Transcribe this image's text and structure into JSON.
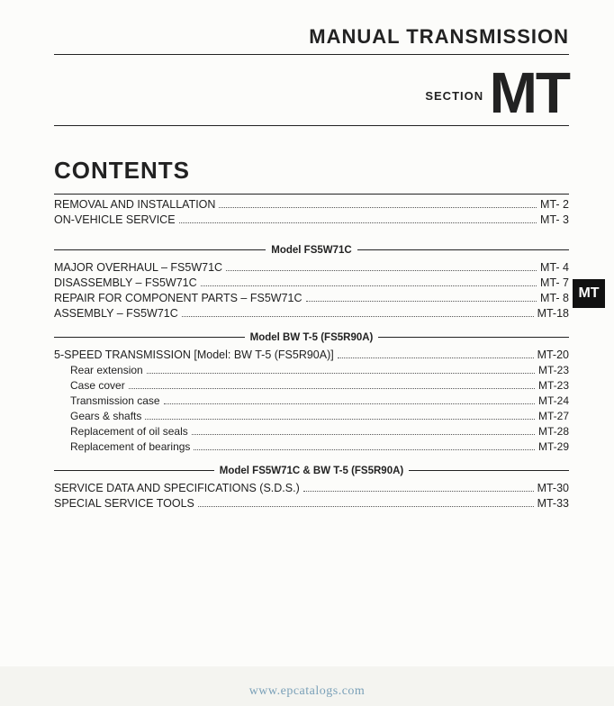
{
  "header": {
    "title": "MANUAL TRANSMISSION",
    "section_label": "SECTION",
    "section_code": "MT"
  },
  "side_tab": "MT",
  "contents_heading": "CONTENTS",
  "groups": [
    {
      "label": null,
      "items": [
        {
          "label": "REMOVAL AND INSTALLATION",
          "page": "MT- 2",
          "sub": false
        },
        {
          "label": "ON-VEHICLE SERVICE",
          "page": "MT- 3",
          "sub": false
        }
      ]
    },
    {
      "label": "Model FS5W71C",
      "items": [
        {
          "label": "MAJOR OVERHAUL – FS5W71C",
          "page": "MT- 4",
          "sub": false
        },
        {
          "label": "DISASSEMBLY – FS5W71C",
          "page": "MT- 7",
          "sub": false
        },
        {
          "label": "REPAIR FOR COMPONENT PARTS – FS5W71C",
          "page": "MT- 8",
          "sub": false
        },
        {
          "label": "ASSEMBLY – FS5W71C",
          "page": "MT-18",
          "sub": false
        }
      ]
    },
    {
      "label": "Model BW T-5 (FS5R90A)",
      "items": [
        {
          "label": "5-SPEED TRANSMISSION  [Model:  BW T-5 (FS5R90A)]",
          "page": "MT-20",
          "sub": false
        },
        {
          "label": "Rear extension",
          "page": "MT-23",
          "sub": true
        },
        {
          "label": "Case cover",
          "page": "MT-23",
          "sub": true
        },
        {
          "label": "Transmission case",
          "page": "MT-24",
          "sub": true
        },
        {
          "label": "Gears & shafts",
          "page": "MT-27",
          "sub": true
        },
        {
          "label": "Replacement of oil seals",
          "page": "MT-28",
          "sub": true
        },
        {
          "label": "Replacement of bearings",
          "page": "MT-29",
          "sub": true
        }
      ]
    },
    {
      "label": "Model FS5W71C & BW T-5 (FS5R90A)",
      "items": [
        {
          "label": "SERVICE DATA AND SPECIFICATIONS (S.D.S.)",
          "page": "MT-30",
          "sub": false
        },
        {
          "label": "SPECIAL SERVICE TOOLS",
          "page": "MT-33",
          "sub": false
        }
      ]
    }
  ],
  "watermark": "www.epcatalogs.com"
}
